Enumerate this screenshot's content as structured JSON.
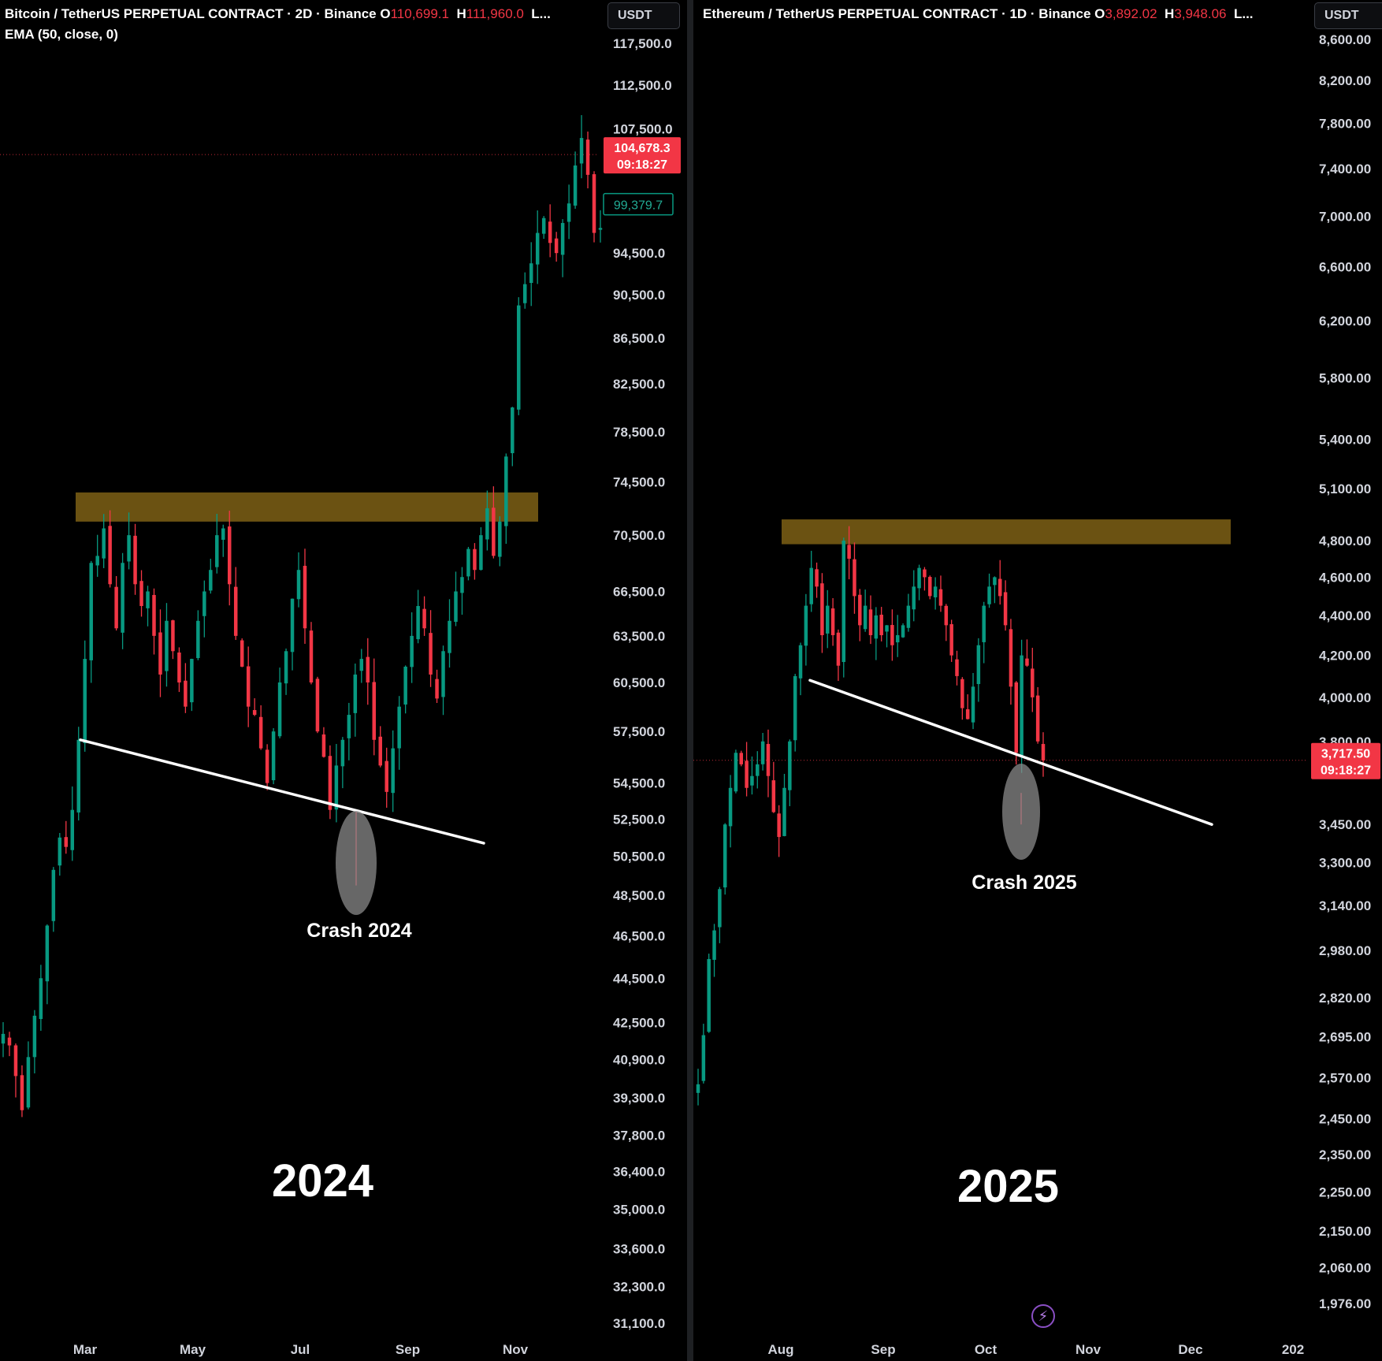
{
  "left_chart": {
    "header": {
      "symbol": "Bitcoin / TetherUS PERPETUAL CONTRACT · 2D · Binance",
      "open_label": "O",
      "open_value": "110,699.1",
      "high_label": "H",
      "high_value": "111,960.0",
      "more": "L..."
    },
    "indicator": "EMA (50, close, 0)",
    "unit": "USDT",
    "year_label": "2024",
    "price_tag": {
      "price": "104,678.3",
      "countdown": "09:18:27"
    },
    "ema_tag": "99,379.7"
  },
  "right_chart": {
    "header": {
      "symbol": "Ethereum / TetherUS PERPETUAL CONTRACT · 1D · Binance",
      "open_label": "O",
      "open_value": "3,892.02",
      "high_label": "H",
      "high_value": "3,948.06",
      "more": "L..."
    },
    "unit": "USDT",
    "year_label": "2025",
    "price_tag": {
      "price": "3,717.50",
      "countdown": "09:18:27"
    }
  },
  "chart_data": [
    {
      "type": "candlestick",
      "title": "Bitcoin / TetherUS PERPETUAL CONTRACT · 2D · Binance",
      "y_scale": "log",
      "y_ticks": [
        117500,
        112500,
        107500,
        94500,
        90500,
        86500,
        82500,
        78500,
        74500,
        70500,
        66500,
        63500,
        60500,
        57500,
        54500,
        52500,
        50500,
        48500,
        46500,
        44500,
        42500,
        40900,
        39300,
        37800,
        36400,
        35000,
        33600,
        32300,
        31100
      ],
      "y_tick_labels": [
        "117,500.0",
        "112,500.0",
        "107,500.0",
        "94,500.0",
        "90,500.0",
        "86,500.0",
        "82,500.0",
        "78,500.0",
        "74,500.0",
        "70,500.0",
        "66,500.0",
        "63,500.0",
        "60,500.0",
        "57,500.0",
        "54,500.0",
        "52,500.0",
        "50,500.0",
        "48,500.0",
        "46,500.0",
        "44,500.0",
        "42,500.0",
        "40,900.0",
        "39,300.0",
        "37,800.0",
        "36,400.0",
        "35,000.0",
        "33,600.0",
        "32,300.0",
        "31,100.0"
      ],
      "x_labels": [
        "Mar",
        "May",
        "Jul",
        "Sep",
        "Nov"
      ],
      "current_price": 104678.3,
      "ema_value": 99379.7,
      "close_path": [
        42000,
        41500,
        40200,
        38800,
        41000,
        42800,
        44500,
        47000,
        49800,
        51500,
        51000,
        53000,
        57000,
        62000,
        68500,
        69000,
        71000,
        67000,
        64000,
        68500,
        70500,
        67000,
        65500,
        66500,
        63500,
        61000,
        64500,
        62500,
        60500,
        59000,
        62000,
        64500,
        66500,
        68000,
        70500,
        71000,
        67000,
        63500,
        61500,
        59000,
        58500,
        56500,
        54500,
        57500,
        60500,
        62500,
        66000,
        68000,
        64000,
        60500,
        57500,
        56000,
        53000,
        55500,
        57000,
        58500,
        61000,
        62000,
        60500,
        57000,
        55500,
        54000,
        56500,
        59000,
        61500,
        63500,
        65500,
        64000,
        61000,
        59500,
        62500,
        64500,
        66500,
        67500,
        69500,
        68000,
        70500,
        72500,
        69000,
        71500,
        76500,
        80500,
        89500,
        91500,
        93500,
        96500,
        98000,
        95500,
        94500,
        97500,
        99500,
        103500,
        106500,
        102500,
        96500,
        97000
      ],
      "annotations": {
        "resistance_zone": [
          71500,
          73700
        ],
        "support_line": {
          "start": 57000,
          "end": 51200
        },
        "crash_low": 49000,
        "crash_label": "Crash 2024",
        "year_label": "2024"
      }
    },
    {
      "type": "candlestick",
      "title": "Ethereum / TetherUS PERPETUAL CONTRACT · 1D · Binance",
      "y_scale": "log",
      "y_ticks": [
        8600,
        8200,
        7800,
        7400,
        7000,
        6600,
        6200,
        5800,
        5400,
        5100,
        4800,
        4600,
        4400,
        4200,
        4000,
        3800,
        3450,
        3300,
        3140,
        2980,
        2820,
        2695,
        2570,
        2450,
        2350,
        2250,
        2150,
        2060,
        1976
      ],
      "y_tick_labels": [
        "8,600.00",
        "8,200.00",
        "7,800.00",
        "7,400.00",
        "7,000.00",
        "6,600.00",
        "6,200.00",
        "5,800.00",
        "5,400.00",
        "5,100.00",
        "4,800.00",
        "4,600.00",
        "4,400.00",
        "4,200.00",
        "4,000.00",
        "3,800.00",
        "3,450.00",
        "3,300.00",
        "3,140.00",
        "2,980.00",
        "2,820.00",
        "2,695.00",
        "2,570.00",
        "2,450.00",
        "2,350.00",
        "2,250.00",
        "2,150.00",
        "2,060.00",
        "1,976.00"
      ],
      "x_labels": [
        "Aug",
        "Sep",
        "Oct",
        "Nov",
        "Dec",
        "202"
      ],
      "current_price": 3717.5,
      "close_path": [
        2550,
        2700,
        2950,
        3050,
        3200,
        3450,
        3600,
        3750,
        3700,
        3600,
        3650,
        3700,
        3800,
        3650,
        3500,
        3400,
        3600,
        3800,
        4100,
        4250,
        4450,
        4650,
        4550,
        4300,
        4450,
        4300,
        4150,
        4800,
        4700,
        4500,
        4350,
        4450,
        4300,
        4400,
        4300,
        4350,
        4250,
        4300,
        4350,
        4450,
        4550,
        4650,
        4600,
        4500,
        4550,
        4450,
        4350,
        4200,
        4100,
        3950,
        3900,
        4050,
        4250,
        4450,
        4550,
        4600,
        4500,
        4350,
        4050,
        3750,
        4200,
        4150,
        4000,
        3800,
        3717
      ],
      "annotations": {
        "resistance_zone": [
          4780,
          4920
        ],
        "support_line": {
          "start": 4080,
          "end": 3450
        },
        "crash_low": 3450,
        "crash_label": "Crash 2025",
        "year_label": "2025"
      }
    }
  ]
}
